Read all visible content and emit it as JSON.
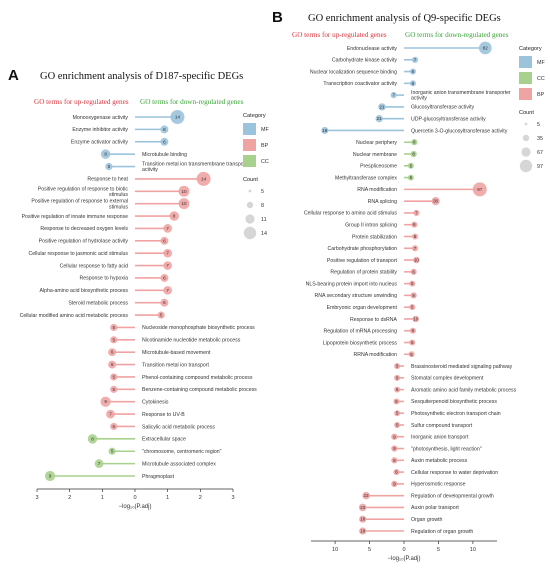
{
  "colors": {
    "MF": "#9cc3dc",
    "BP": "#f0a3a3",
    "CC": "#a9d18e",
    "line_MF": "#9cc3dc",
    "line_BP": "#f0a3a3",
    "line_CC": "#a9d18e",
    "up_title": "#d9363e",
    "down_title": "#3aa43a"
  },
  "chart_data": [
    {
      "type": "bar",
      "panel_letter": "A",
      "title": "GO enrichment analysis of D187-specific DEGs",
      "subtitle_up": "GO terms for up-regulated genes",
      "subtitle_down": "GO terms for down-regulated genes",
      "xlabel": "−log₁₀(P.adj)",
      "xticks": [
        "3",
        "2",
        "1",
        "0",
        "1",
        "2",
        "3"
      ],
      "xlim": [
        -3,
        3
      ],
      "legend_category_title": "Category",
      "legend_categories": [
        "MF",
        "BP",
        "CC"
      ],
      "legend_count_title": "Count",
      "legend_counts": [
        "5",
        "8",
        "11",
        "14"
      ],
      "terms": [
        {
          "term": "Monooxygenase activity",
          "value": 1.3,
          "count": 14,
          "category": "MF",
          "direction": "up"
        },
        {
          "term": "Enzyme inhibitor activity",
          "value": 0.9,
          "count": 6,
          "category": "MF",
          "direction": "up"
        },
        {
          "term": "Enzyme activator activity",
          "value": 0.9,
          "count": 6,
          "category": "MF",
          "direction": "up"
        },
        {
          "term": "Microtubule binding",
          "value": -0.9,
          "count": 8,
          "category": "MF",
          "direction": "down"
        },
        {
          "term": "Transition metal ion transmembrane transporter activity",
          "value": -0.8,
          "count": 5,
          "category": "MF",
          "direction": "down"
        },
        {
          "term": "Response to heat",
          "value": 2.1,
          "count": 14,
          "category": "BP",
          "direction": "up"
        },
        {
          "term": "Positive regulation of response to biotic stimulus",
          "value": 1.5,
          "count": 10,
          "category": "BP",
          "direction": "up"
        },
        {
          "term": "Positive regulation of response to external stimulus",
          "value": 1.5,
          "count": 10,
          "category": "BP",
          "direction": "up"
        },
        {
          "term": "Positive regulation of innate immune response",
          "value": 1.2,
          "count": 8,
          "category": "BP",
          "direction": "up"
        },
        {
          "term": "Response to decreased oxygen levels",
          "value": 1.0,
          "count": 7,
          "category": "BP",
          "direction": "up"
        },
        {
          "term": "Positive regulation of hydrolase activity",
          "value": 0.9,
          "count": 6,
          "category": "BP",
          "direction": "up"
        },
        {
          "term": "Cellular response to jasmonic acid stimulus",
          "value": 1.0,
          "count": 7,
          "category": "BP",
          "direction": "up"
        },
        {
          "term": "Cellular response to fatty acid",
          "value": 1.0,
          "count": 7,
          "category": "BP",
          "direction": "up"
        },
        {
          "term": "Response to hypoxia",
          "value": 0.9,
          "count": 6,
          "category": "BP",
          "direction": "up"
        },
        {
          "term": "Alpha-amino acid biosynthetic process",
          "value": 1.0,
          "count": 7,
          "category": "BP",
          "direction": "up"
        },
        {
          "term": "Steroid metabolic process",
          "value": 0.9,
          "count": 6,
          "category": "BP",
          "direction": "up"
        },
        {
          "term": "Cellular modified amino acid metabolic process",
          "value": 0.8,
          "count": 5,
          "category": "BP",
          "direction": "up"
        },
        {
          "term": "Nucleoside monophosphate biosynthetic process",
          "value": -0.65,
          "count": 5,
          "category": "BP",
          "direction": "down"
        },
        {
          "term": "Nicotinamide nucleotide metabolic process",
          "value": -0.65,
          "count": 5,
          "category": "BP",
          "direction": "down"
        },
        {
          "term": "Microtubule-based movement",
          "value": -0.7,
          "count": 6,
          "category": "BP",
          "direction": "down"
        },
        {
          "term": "Transition metal ion transport",
          "value": -0.7,
          "count": 6,
          "category": "BP",
          "direction": "down"
        },
        {
          "term": "Phenol-containing compound metabolic process",
          "value": -0.65,
          "count": 5,
          "category": "BP",
          "direction": "down"
        },
        {
          "term": "Benzene-containing compound metabolic process",
          "value": -0.65,
          "count": 5,
          "category": "BP",
          "direction": "down"
        },
        {
          "term": "Cytokinesis",
          "value": -0.9,
          "count": 9,
          "category": "BP",
          "direction": "down"
        },
        {
          "term": "Response to UV-B",
          "value": -0.75,
          "count": 7,
          "category": "BP",
          "direction": "down"
        },
        {
          "term": "Salicylic acid metabolic process",
          "value": -0.65,
          "count": 5,
          "category": "BP",
          "direction": "down"
        },
        {
          "term": "Extracellular space",
          "value": -1.3,
          "count": 8,
          "category": "CC",
          "direction": "down"
        },
        {
          "term": "\"chromosome, centromeric region\"",
          "value": -0.7,
          "count": 5,
          "category": "CC",
          "direction": "down"
        },
        {
          "term": "Microtubule associated complex",
          "value": -1.1,
          "count": 7,
          "category": "CC",
          "direction": "down"
        },
        {
          "term": "Phragmoplast",
          "value": -2.6,
          "count": 9,
          "category": "CC",
          "direction": "down"
        }
      ]
    },
    {
      "type": "bar",
      "panel_letter": "B",
      "title": "GO enrichment analysis of Q9-specific DEGs",
      "subtitle_up": "GO terms for up-regulated genes",
      "subtitle_down": "GO terms for down-regulated genes",
      "xlabel": "−log₁₀(P.adj)",
      "xticks": [
        "10",
        "5",
        "0",
        "5",
        "10"
      ],
      "xlim": [
        -13.5,
        13.5
      ],
      "legend_category_title": "Category",
      "legend_categories": [
        "MF",
        "CC",
        "BP"
      ],
      "legend_count_title": "Count",
      "legend_counts": [
        "5",
        "35",
        "67",
        "97"
      ],
      "terms": [
        {
          "term": "Endonuclease activity",
          "value": 11.8,
          "count": 82,
          "category": "MF",
          "direction": "up"
        },
        {
          "term": "Carbohydrate kinase activity",
          "value": 1.6,
          "count": 7,
          "category": "MF",
          "direction": "up"
        },
        {
          "term": "Nuclear localization sequence binding",
          "value": 1.3,
          "count": 6,
          "category": "MF",
          "direction": "up"
        },
        {
          "term": "Transcription coactivator activity",
          "value": 1.3,
          "count": 6,
          "category": "MF",
          "direction": "up"
        },
        {
          "term": "Inorganic anion transmembrane transporter activity",
          "value": -1.5,
          "count": 7,
          "category": "MF",
          "direction": "down"
        },
        {
          "term": "Glucosyltransferase activity",
          "value": -3.2,
          "count": 21,
          "category": "MF",
          "direction": "down"
        },
        {
          "term": "UDP-glucosyltransferase activity",
          "value": -3.6,
          "count": 21,
          "category": "MF",
          "direction": "down"
        },
        {
          "term": "Quercetin 3-O-glucosyltransferase activity",
          "value": -11.5,
          "count": 18,
          "category": "MF",
          "direction": "down"
        },
        {
          "term": "Nuclear periphery",
          "value": 1.5,
          "count": 8,
          "category": "CC",
          "direction": "up"
        },
        {
          "term": "Nuclear membrane",
          "value": 1.4,
          "count": 8,
          "category": "CC",
          "direction": "up"
        },
        {
          "term": "Prespliceosome",
          "value": 1.0,
          "count": 5,
          "category": "CC",
          "direction": "up"
        },
        {
          "term": "Methyltransferase complex",
          "value": 1.0,
          "count": 5,
          "category": "CC",
          "direction": "up"
        },
        {
          "term": "RNA modification",
          "value": 11.0,
          "count": 97,
          "category": "BP",
          "direction": "up"
        },
        {
          "term": "RNA splicing",
          "value": 4.6,
          "count": 30,
          "category": "BP",
          "direction": "up"
        },
        {
          "term": "Cellular response to amino acid stimulus",
          "value": 1.8,
          "count": 7,
          "category": "BP",
          "direction": "up"
        },
        {
          "term": "Group II intron splicing",
          "value": 1.5,
          "count": 6,
          "category": "BP",
          "direction": "up"
        },
        {
          "term": "Protein stabilization",
          "value": 1.6,
          "count": 6,
          "category": "BP",
          "direction": "up"
        },
        {
          "term": "Carbohydrate phosphorylation",
          "value": 1.6,
          "count": 7,
          "category": "BP",
          "direction": "up"
        },
        {
          "term": "Positive regulation of transport",
          "value": 1.8,
          "count": 10,
          "category": "BP",
          "direction": "up"
        },
        {
          "term": "Regulation of protein stability",
          "value": 1.4,
          "count": 6,
          "category": "BP",
          "direction": "up"
        },
        {
          "term": "NLS-bearing protein import into nucleus",
          "value": 1.2,
          "count": 5,
          "category": "BP",
          "direction": "up"
        },
        {
          "term": "RNA secondary structure unwinding",
          "value": 1.4,
          "count": 8,
          "category": "BP",
          "direction": "up"
        },
        {
          "term": "Embryonic organ development",
          "value": 1.2,
          "count": 5,
          "category": "BP",
          "direction": "up"
        },
        {
          "term": "Response to dsRNA",
          "value": 1.7,
          "count": 10,
          "category": "BP",
          "direction": "up"
        },
        {
          "term": "Regulation of mRNA processing",
          "value": 1.3,
          "count": 6,
          "category": "BP",
          "direction": "up"
        },
        {
          "term": "Lipoprotein biosynthetic process",
          "value": 1.2,
          "count": 5,
          "category": "BP",
          "direction": "up"
        },
        {
          "term": "RRNA modification",
          "value": 1.1,
          "count": 5,
          "category": "BP",
          "direction": "up"
        },
        {
          "term": "Brassinosteroid mediated signaling pathway",
          "value": -1.0,
          "count": 5,
          "category": "BP",
          "direction": "down"
        },
        {
          "term": "Stomatal complex development",
          "value": -1.0,
          "count": 5,
          "category": "BP",
          "direction": "down"
        },
        {
          "term": "Aromatic amino acid family metabolic process",
          "value": -1.0,
          "count": 5,
          "category": "BP",
          "direction": "down"
        },
        {
          "term": "Sesquiterpenoid biosynthetic process",
          "value": -1.1,
          "count": 6,
          "category": "BP",
          "direction": "down"
        },
        {
          "term": "Photosynthetic electron transport chain",
          "value": -1.0,
          "count": 5,
          "category": "BP",
          "direction": "down"
        },
        {
          "term": "Sulfur compound transport",
          "value": -1.0,
          "count": 5,
          "category": "BP",
          "direction": "down"
        },
        {
          "term": "Inorganic anion transport",
          "value": -1.4,
          "count": 9,
          "category": "BP",
          "direction": "down"
        },
        {
          "term": "\"photosynthesis, light reaction\"",
          "value": -1.4,
          "count": 9,
          "category": "BP",
          "direction": "down"
        },
        {
          "term": "Auxin metabolic process",
          "value": -1.4,
          "count": 8,
          "category": "BP",
          "direction": "down"
        },
        {
          "term": "Cellular response to water deprivation",
          "value": -1.1,
          "count": 6,
          "category": "BP",
          "direction": "down"
        },
        {
          "term": "Hyperosmotic response",
          "value": -1.4,
          "count": 9,
          "category": "BP",
          "direction": "down"
        },
        {
          "term": "Regulation of developmental growth",
          "value": -5.5,
          "count": 22,
          "category": "BP",
          "direction": "down"
        },
        {
          "term": "Auxin polar transport",
          "value": -6.0,
          "count": 23,
          "category": "BP",
          "direction": "down"
        },
        {
          "term": "Organ growth",
          "value": -6.0,
          "count": 18,
          "category": "BP",
          "direction": "down"
        },
        {
          "term": "Regulation of organ growth",
          "value": -6.0,
          "count": 18,
          "category": "BP",
          "direction": "down"
        }
      ]
    }
  ]
}
